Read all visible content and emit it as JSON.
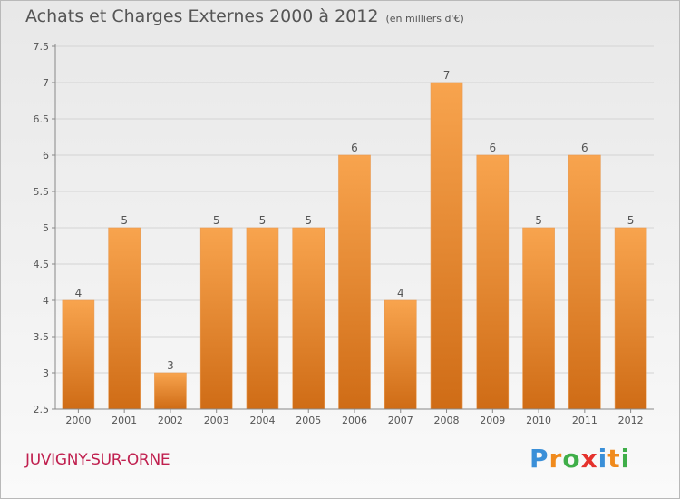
{
  "title": "Achats et Charges Externes 2000 à 2012",
  "unit_note": "(en milliers d'€)",
  "town": "JUVIGNY-SUR-ORNE",
  "brand": {
    "letters": [
      "P",
      "r",
      "o",
      "x",
      "i",
      "t",
      "i"
    ],
    "colors": [
      "#3a8fd8",
      "#f08a1c",
      "#3fae49",
      "#e5322d",
      "#3a8fd8",
      "#f08a1c",
      "#3fae49"
    ]
  },
  "chart_data": {
    "type": "bar",
    "categories": [
      "2000",
      "2001",
      "2002",
      "2003",
      "2004",
      "2005",
      "2006",
      "2007",
      "2008",
      "2009",
      "2010",
      "2011",
      "2012"
    ],
    "values": [
      4,
      5,
      3,
      5,
      5,
      5,
      6,
      4,
      7,
      6,
      5,
      6,
      5
    ],
    "data_labels": [
      "4",
      "5",
      "3",
      "5",
      "5",
      "5",
      "6",
      "4",
      "7",
      "6",
      "5",
      "6",
      "5"
    ],
    "yticks": [
      "2.5",
      "3",
      "3.5",
      "4",
      "4.5",
      "5",
      "5.5",
      "6",
      "6.5",
      "7",
      "7.5"
    ],
    "ylim": [
      2.5,
      7.5
    ],
    "grid": true,
    "bar_color_top": "#f8a44e",
    "bar_color_bottom": "#cf6c16"
  }
}
